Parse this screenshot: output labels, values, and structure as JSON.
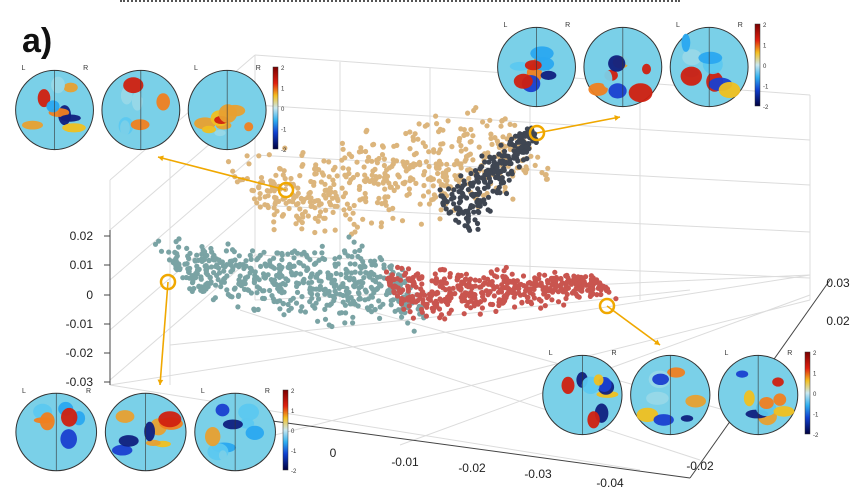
{
  "panel_label": "a)",
  "chart_data": {
    "type": "scatter",
    "title": "",
    "z_ticks": [
      "0.02",
      "0.01",
      "0",
      "-0.01",
      "-0.02",
      "-0.03"
    ],
    "x_ticks": [
      "0",
      "-0.01",
      "-0.02",
      "-0.03",
      "-0.04"
    ],
    "y_ticks": [
      "-0.02",
      "0.02",
      "0.03"
    ],
    "series": [
      {
        "color": "#dcb57c",
        "count": 520
      },
      {
        "color": "#3f4652",
        "count": 260
      },
      {
        "color": "#7aa3a4",
        "count": 560
      },
      {
        "color": "#c9554f",
        "count": 470
      }
    ],
    "highlight_color": "#f0a800",
    "colormap": {
      "ticks": [
        "2",
        "1",
        "0",
        "-1",
        "-2"
      ]
    },
    "brain_views": [
      {
        "view": "coronal",
        "labels": [
          "L",
          "R"
        ]
      },
      {
        "view": "sagittal",
        "labels": []
      },
      {
        "view": "axial",
        "labels": [
          "L",
          "R"
        ]
      }
    ]
  }
}
